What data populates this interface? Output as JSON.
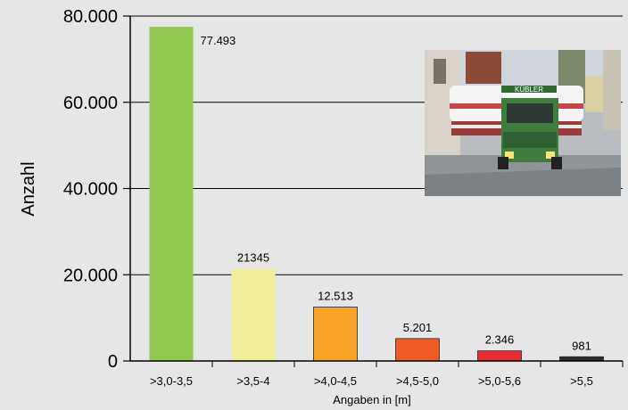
{
  "chart_data": {
    "type": "bar",
    "title": "",
    "ylabel": "Anzahl",
    "xlabel": "Angaben in [m]",
    "ylim": [
      0,
      80000
    ],
    "yticks": [
      {
        "value": 0,
        "label": "0"
      },
      {
        "value": 20000,
        "label": "20.000"
      },
      {
        "value": 40000,
        "label": "40.000"
      },
      {
        "value": 60000,
        "label": "60.000"
      },
      {
        "value": 80000,
        "label": "80.000"
      }
    ],
    "grid": true,
    "categories": [
      ">3,0-3,5",
      ">3,5-4",
      ">4,0-4,5",
      ">4,5-5,0",
      ">5,0-5,6",
      ">5,5"
    ],
    "values": [
      77493,
      21345,
      12513,
      5201,
      2346,
      981
    ],
    "value_labels": [
      "77.493",
      "21345",
      "12.513",
      "5.201",
      "2.346",
      "981"
    ],
    "colors": [
      "#92c84f",
      "#f2ee9a",
      "#f8a326",
      "#ee5b25",
      "#e52f35",
      "#2e2e2e"
    ]
  },
  "photo": {
    "description_icon": "heavy-transport-truck-photo",
    "sign_text": "KÜBLER"
  }
}
